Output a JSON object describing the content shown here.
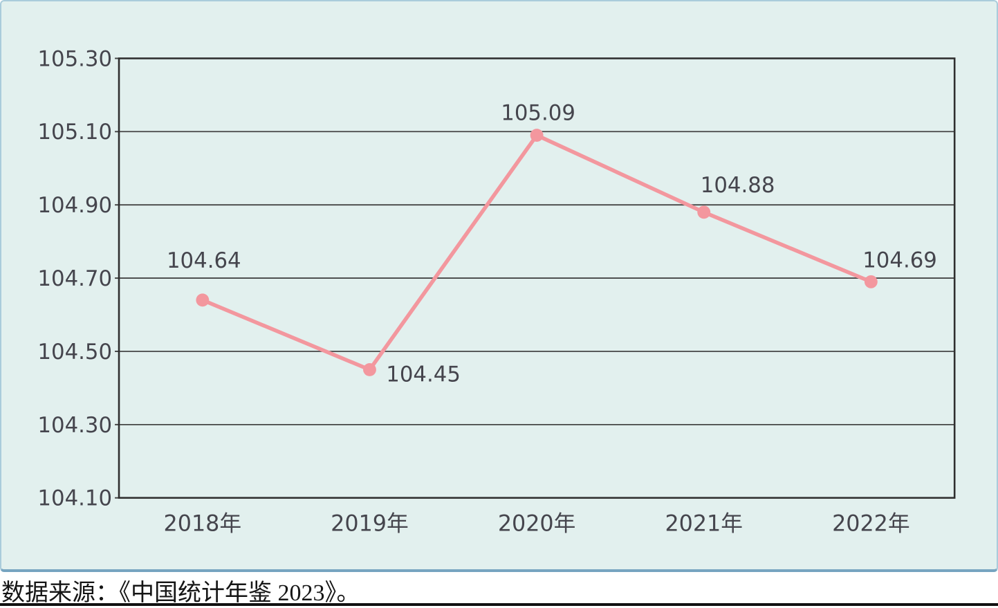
{
  "chart_data": {
    "type": "line",
    "title": "",
    "xlabel": "",
    "ylabel": "",
    "categories": [
      "2018年",
      "2019年",
      "2020年",
      "2021年",
      "2022年"
    ],
    "values": [
      104.64,
      104.45,
      105.09,
      104.88,
      104.69
    ],
    "point_labels": [
      "104.64",
      "104.45",
      "105.09",
      "104.88",
      "104.69"
    ],
    "y_ticks": [
      "105.30",
      "105.10",
      "104.90",
      "104.70",
      "104.50",
      "104.30",
      "104.10"
    ],
    "ylim": [
      104.1,
      105.3
    ],
    "grid": true,
    "legend": false,
    "colors": {
      "line": "#f3979e",
      "marker": "#f3979e",
      "grid": "#454545",
      "frame": "#2f2f2f",
      "tick_text": "#45454d",
      "panel_bg": "#e2f0ee",
      "panel_border": "#aaccdb",
      "panel_border_bottom": "#76a4c0"
    }
  },
  "footer": {
    "source_text": "数据来源：《中国统计年鉴 2023》。"
  }
}
